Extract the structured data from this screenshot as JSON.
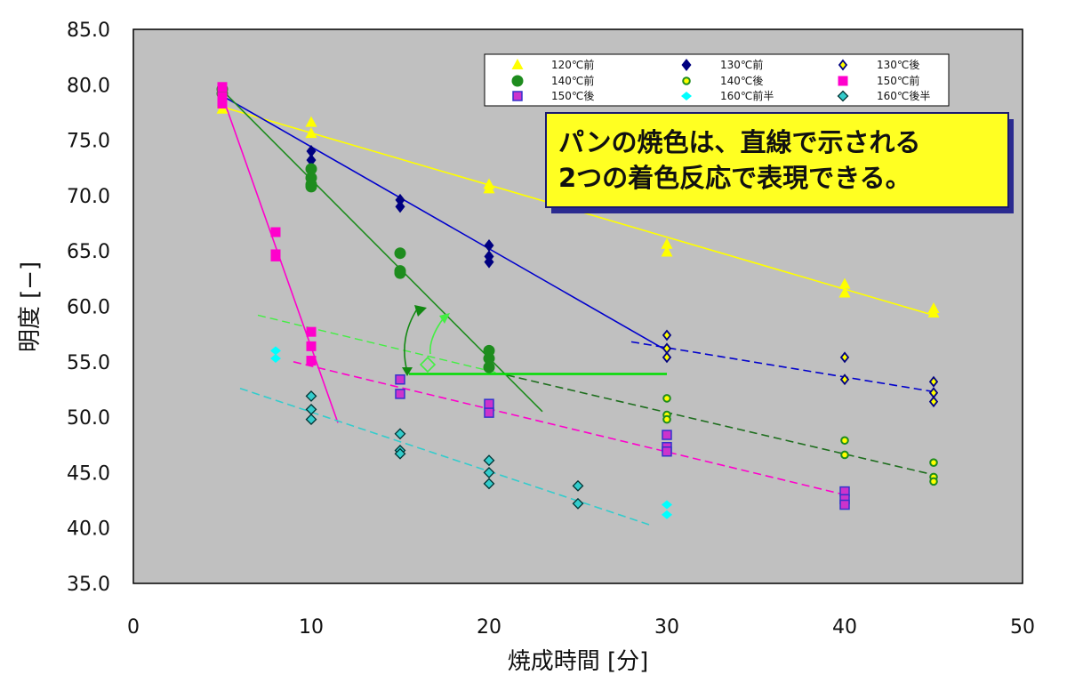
{
  "chart_data": {
    "type": "scatter",
    "title": "",
    "xlabel": "焼成時間 [分]",
    "ylabel": "明度 [−]",
    "xlim": [
      0,
      50
    ],
    "ylim": [
      35,
      85
    ],
    "x_ticks": [
      "0",
      "10",
      "20",
      "30",
      "40",
      "50"
    ],
    "y_ticks": [
      "35.0",
      "40.0",
      "45.0",
      "50.0",
      "55.0",
      "60.0",
      "65.0",
      "70.0",
      "75.0",
      "80.0",
      "85.0"
    ],
    "grid": false,
    "plot_background": "#c0c0c0",
    "legend_position": "top-right",
    "series": [
      {
        "name": "120℃前",
        "marker": "triangle",
        "color": "#ffff00",
        "points": [
          [
            5,
            77.8
          ],
          [
            5,
            78.3
          ],
          [
            10,
            76.6
          ],
          [
            10,
            75.6
          ],
          [
            20,
            71.0
          ],
          [
            20,
            70.6
          ],
          [
            25,
            68.8
          ],
          [
            30,
            65.6
          ],
          [
            30,
            64.9
          ],
          [
            40,
            62.0
          ],
          [
            40,
            61.2
          ],
          [
            45,
            59.8
          ],
          [
            45,
            59.4
          ]
        ]
      },
      {
        "name": "130℃前",
        "marker": "diamond",
        "color": "#000080",
        "points": [
          [
            5,
            79.5
          ],
          [
            10,
            74.0
          ],
          [
            10,
            73.2
          ],
          [
            15,
            69.6
          ],
          [
            15,
            69.0
          ],
          [
            20,
            65.5
          ],
          [
            20,
            64.5
          ],
          [
            20,
            64.0
          ]
        ]
      },
      {
        "name": "130℃後",
        "marker": "small-diamond",
        "color": "#ffff00",
        "edge": "#000080",
        "points": [
          [
            30,
            57.4
          ],
          [
            30,
            56.2
          ],
          [
            30,
            55.4
          ],
          [
            40,
            55.4
          ],
          [
            40,
            53.4
          ],
          [
            45,
            53.2
          ],
          [
            45,
            52.2
          ],
          [
            45,
            51.4
          ]
        ]
      },
      {
        "name": "140℃前",
        "marker": "circle",
        "color": "#1e8c1e",
        "points": [
          [
            5,
            79.6
          ],
          [
            5,
            79.2
          ],
          [
            10,
            72.4
          ],
          [
            10,
            71.6
          ],
          [
            10,
            71.0
          ],
          [
            10,
            70.8
          ],
          [
            15,
            64.8
          ],
          [
            15,
            63.2
          ],
          [
            15,
            63.0
          ],
          [
            20,
            56.0
          ],
          [
            20,
            55.3
          ],
          [
            20,
            54.5
          ]
        ]
      },
      {
        "name": "140℃後",
        "marker": "small-circle",
        "color": "#ffff00",
        "edge": "#1e8c1e",
        "points": [
          [
            30,
            51.7
          ],
          [
            30,
            50.2
          ],
          [
            30,
            49.8
          ],
          [
            40,
            47.9
          ],
          [
            40,
            46.6
          ],
          [
            45,
            45.9
          ],
          [
            45,
            44.6
          ],
          [
            45,
            44.2
          ]
        ]
      },
      {
        "name": "150℃前",
        "marker": "square",
        "color": "#ff00cc",
        "points": [
          [
            5,
            79.8
          ],
          [
            5,
            78.9
          ],
          [
            5,
            78.3
          ],
          [
            8,
            66.7
          ],
          [
            8,
            64.7
          ],
          [
            8,
            64.5
          ],
          [
            10,
            57.7
          ],
          [
            10,
            56.4
          ],
          [
            10,
            55.1
          ]
        ]
      },
      {
        "name": "150℃後",
        "marker": "square-edge",
        "color": "#cc33cc",
        "edge": "#3333cc",
        "points": [
          [
            15,
            53.4
          ],
          [
            15,
            52.1
          ],
          [
            20,
            51.2
          ],
          [
            20,
            50.4
          ],
          [
            30,
            48.4
          ],
          [
            30,
            47.3
          ],
          [
            30,
            46.9
          ],
          [
            40,
            43.3
          ],
          [
            40,
            42.6
          ],
          [
            40,
            42.1
          ]
        ]
      },
      {
        "name": "160℃前半",
        "marker": "diamond-flat",
        "color": "#00ffff",
        "points": [
          [
            8,
            56.0
          ],
          [
            8,
            55.3
          ],
          [
            30,
            42.1
          ],
          [
            30,
            41.2
          ]
        ]
      },
      {
        "name": "160℃後半",
        "marker": "diamond-edge",
        "color": "#33cccc",
        "edge": "#003333",
        "points": [
          [
            10,
            51.9
          ],
          [
            10,
            50.7
          ],
          [
            10,
            49.8
          ],
          [
            15,
            48.5
          ],
          [
            15,
            47.0
          ],
          [
            15,
            46.7
          ],
          [
            20,
            46.1
          ],
          [
            20,
            45.0
          ],
          [
            20,
            44.0
          ],
          [
            25,
            43.8
          ],
          [
            25,
            42.2
          ]
        ]
      }
    ],
    "trend_lines": [
      {
        "series": "120℃前",
        "style": "solid",
        "color": "#ffff00",
        "from": [
          5,
          78.0
        ],
        "to": [
          45,
          59.2
        ]
      },
      {
        "series": "130℃前",
        "style": "solid",
        "color": "#0000cc",
        "from": [
          5,
          79.0
        ],
        "to": [
          30,
          56.0
        ]
      },
      {
        "series": "140℃前",
        "style": "solid",
        "color": "#1e8c1e",
        "from": [
          5,
          79.5
        ],
        "to": [
          23,
          50.5
        ]
      },
      {
        "series": "150℃前",
        "style": "solid",
        "color": "#ff00cc",
        "from": [
          5,
          79.0
        ],
        "to": [
          11.5,
          49.5
        ]
      },
      {
        "series": "130℃後",
        "style": "dashed",
        "color": "#0000cc",
        "from": [
          28,
          56.8
        ],
        "to": [
          45,
          52.3
        ]
      },
      {
        "series": "140℃後",
        "style": "dashed-light",
        "color": "#44ee44",
        "from": [
          7,
          59.2
        ],
        "to": [
          21,
          53.8
        ]
      },
      {
        "series": "140℃後",
        "style": "dashed",
        "color": "#1e6e1e",
        "from": [
          21,
          53.8
        ],
        "to": [
          45,
          44.8
        ]
      },
      {
        "series": "150℃後",
        "style": "dashed",
        "color": "#ff00cc",
        "from": [
          9,
          55.0
        ],
        "to": [
          40,
          43.0
        ]
      },
      {
        "series": "160℃後半",
        "style": "dashed",
        "color": "#33cccc",
        "from": [
          6,
          52.6
        ],
        "to": [
          29,
          40.3
        ]
      },
      {
        "series": "annotation",
        "style": "solid-bold",
        "color": "#00dd00",
        "from": [
          15.5,
          53.9
        ],
        "to": [
          30,
          53.9
        ]
      }
    ],
    "annotations": {
      "callout": [
        "パンの焼色は、直線で示される",
        "2つの着色反応で表現できる。"
      ]
    }
  }
}
